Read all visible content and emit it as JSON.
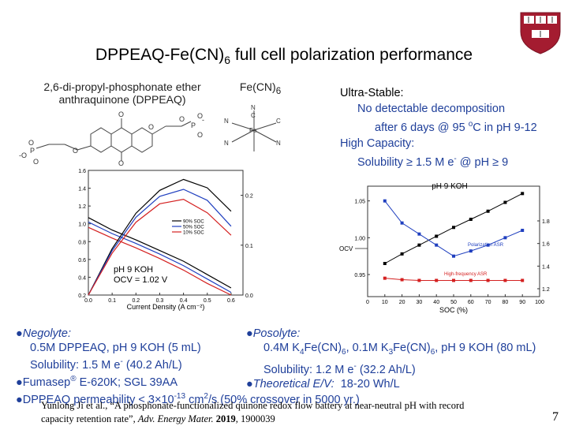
{
  "slide": {
    "title_main": "DPPEAQ-Fe(CN)",
    "title_sub": "6",
    "title_rest": " full cell polarization performance",
    "page_number": "7"
  },
  "molecules": {
    "left_label_line1": "2,6-di-propyl-phosphonate ether",
    "left_label_line2": "anthraquinone (DPPEAQ)",
    "right_label_main": "Fe(CN)",
    "right_label_sub": "6"
  },
  "features": {
    "ultra_stable_heading": "Ultra-Stable:",
    "ultra_stable_line1": "No detectable decomposition",
    "ultra_stable_line2_a": "after 6 days @ 95 ",
    "ultra_stable_line2_sup": "o",
    "ultra_stable_line2_b": "C in pH 9-12",
    "high_capacity_heading": "High Capacity:",
    "high_capacity_line_a": "Solubility ≥ 1.5 M e",
    "high_capacity_line_sup": "-",
    "high_capacity_line_b": " @ pH ≥ 9"
  },
  "left_chart_text": {
    "inset_line1": "pH 9 KOH",
    "inset_line2": "OCV = 1.02 V",
    "xlabel": "Current Density (A cm⁻²)",
    "legend": [
      "90% SOC",
      "50% SOC",
      "10% SOC"
    ]
  },
  "right_chart_text": {
    "top_label": "pH 9 KOH",
    "xlabel": "SOC (%)",
    "ocv_label": "OCV",
    "polarization_label": "Polarization ASR",
    "hf_label": "High-frequency ASR"
  },
  "chart_data": [
    {
      "type": "line",
      "xlabel": "Current Density (A cm⁻²)",
      "ylabel": "",
      "x": [
        0.0,
        0.1,
        0.2,
        0.3,
        0.4,
        0.5,
        0.6
      ],
      "xticks": [
        "0.0",
        "0.1",
        "0.2",
        "0.3",
        "0.4",
        "0.5",
        "0.6"
      ],
      "yticks": [
        "0.2",
        "0.4",
        "0.6",
        "0.8",
        "1.0",
        "1.2",
        "1.4",
        "1.6"
      ],
      "xlim": [
        0.0,
        0.65
      ],
      "ylim": [
        0.2,
        1.6
      ],
      "series": [
        {
          "name": "90% SOC",
          "color": "#000000",
          "values": [
            1.07,
            0.93,
            0.82,
            0.7,
            0.58,
            0.43,
            0.28
          ]
        },
        {
          "name": "50% SOC",
          "color": "#1f3fbf",
          "values": [
            1.02,
            0.89,
            0.78,
            0.66,
            0.53,
            0.38,
            0.23
          ]
        },
        {
          "name": "10% SOC",
          "color": "#d42020",
          "values": [
            0.96,
            0.84,
            0.73,
            0.61,
            0.48,
            0.33,
            0.2
          ]
        }
      ],
      "power_series": [
        {
          "name": "90% SOC",
          "color": "#000000",
          "values": [
            0.0,
            0.093,
            0.164,
            0.21,
            0.232,
            0.215,
            0.168
          ]
        },
        {
          "name": "50% SOC",
          "color": "#1f3fbf",
          "values": [
            0.0,
            0.089,
            0.156,
            0.198,
            0.212,
            0.19,
            0.138
          ]
        },
        {
          "name": "10% SOC",
          "color": "#d42020",
          "values": [
            0.0,
            0.084,
            0.146,
            0.183,
            0.192,
            0.165,
            0.12
          ]
        }
      ],
      "right_yticks": [
        "0.0",
        "0.1",
        "0.2"
      ],
      "right_ylim": [
        0.0,
        0.25
      ],
      "grid": false
    },
    {
      "type": "line",
      "xlabel": "SOC (%)",
      "ylabel": "",
      "x": [
        10,
        20,
        30,
        40,
        50,
        60,
        70,
        80,
        90
      ],
      "xticks": [
        "0",
        "10",
        "20",
        "30",
        "40",
        "50",
        "60",
        "70",
        "80",
        "90",
        "100"
      ],
      "yticks": [
        "0.95",
        "1.00",
        "1.05"
      ],
      "xlim": [
        0,
        100
      ],
      "ylim": [
        0.92,
        1.07
      ],
      "series": [
        {
          "name": "OCV",
          "color": "#000000",
          "values": [
            0.965,
            0.978,
            0.99,
            1.002,
            1.014,
            1.025,
            1.036,
            1.048,
            1.06
          ]
        },
        {
          "name": "Polarization ASR",
          "color": "#1f3fbf",
          "values": [
            1.05,
            1.02,
            1.005,
            0.99,
            0.975,
            0.982,
            0.99,
            1.0,
            1.01
          ]
        },
        {
          "name": "High-frequency ASR",
          "color": "#d42020",
          "values": [
            0.945,
            0.943,
            0.942,
            0.942,
            0.942,
            0.942,
            0.942,
            0.942,
            0.942
          ]
        }
      ],
      "right_yticks": [
        "1.8",
        "1.6",
        "1.4",
        "1.2"
      ],
      "grid": false,
      "legend": "inline labels"
    }
  ],
  "bullets": {
    "negolyte_heading": "Negolyte:",
    "negolyte_line1": "0.5M DPPEAQ, pH 9 KOH (5 mL)",
    "negolyte_line2_a": "Solubility: 1.5 M e",
    "negolyte_line2_sup": "-",
    "negolyte_line2_b": " (40.2 Ah/L)",
    "fumasep_a": "Fumasep",
    "fumasep_sup": "®",
    "fumasep_b": " E-620K; SGL 39AA",
    "permeability_a": "DPPEAQ permeability < 3×10",
    "permeability_sup": "-13",
    "permeability_b": " cm",
    "permeability_sup2": "2",
    "permeability_c": "/s (50% crossover in 5000 yr.)",
    "posolyte_heading": "Posolyte:",
    "posolyte_line1_a": "0.4M K",
    "posolyte_line1_s1": "4",
    "posolyte_line1_b": "Fe(CN)",
    "posolyte_line1_s2": "6",
    "posolyte_line1_c": ", 0.1M K",
    "posolyte_line1_s3": "3",
    "posolyte_line1_d": "Fe(CN)",
    "posolyte_line1_s4": "6",
    "posolyte_line1_e": ", pH 9 KOH (80 mL)",
    "posolyte_line2_a": "Solubility: 1.2 M e",
    "posolyte_line2_sup": "-",
    "posolyte_line2_b": " (32.2 Ah/L)",
    "theoretical_label": "Theoretical E/V:",
    "theoretical_value": "18-20 Wh/L"
  },
  "reference": {
    "line1": "Yunlong Ji et al., “A phosphonate-functionalized quinone redox flow battery at near-neutral pH with record",
    "line2_a": "capacity retention rate”, ",
    "line2_journal": "Adv. Energy Mater.",
    "line2_year": " 2019",
    "line2_b": ", 1900039"
  },
  "colors": {
    "text_blue": "#1f3f9a",
    "black_series": "#000000",
    "blue_series": "#1f3fbf",
    "red_series": "#d42020",
    "logo_red": "#a41c30"
  }
}
